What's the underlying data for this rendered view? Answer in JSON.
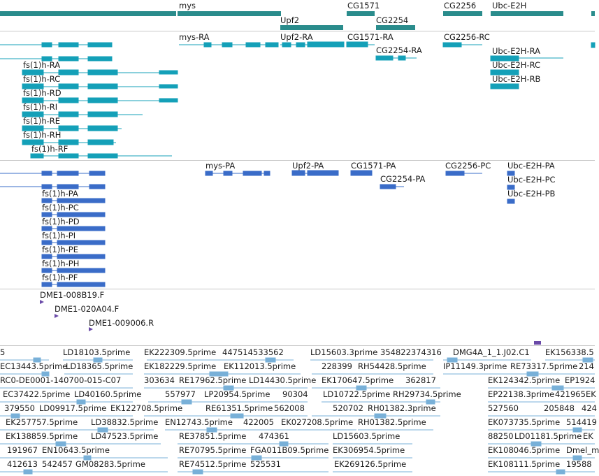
{
  "colors": {
    "gene": "#2a8c8c",
    "transcript": "#14a0b8",
    "protein": "#3a6cc8",
    "clone": "#6a4aa8",
    "est": "#78b0d8",
    "divider": "#c8c8c8"
  },
  "tracks": {
    "genes": {
      "labels": [
        "mys",
        "Upf2",
        "CG1571",
        "CG2254",
        "CG2256",
        "Ubc-E2H"
      ]
    },
    "transcripts": {
      "labels": [
        "mys-RA",
        "Upf2-RA",
        "CG1571-RA",
        "CG2254-RA",
        "CG2256-RC",
        "Ubc-E2H-RA",
        "Ubc-E2H-RC",
        "Ubc-E2H-RB",
        "fs(1)h-RA",
        "fs(1)h-RC",
        "fs(1)h-RD",
        "fs(1)h-RI",
        "fs(1)h-RE",
        "fs(1)h-RH",
        "fs(1)h-RF"
      ]
    },
    "proteins": {
      "labels": [
        "mys-PA",
        "Upf2-PA",
        "CG1571-PA",
        "CG2254-PA",
        "CG2256-PC",
        "Ubc-E2H-PA",
        "Ubc-E2H-PC",
        "Ubc-E2H-PB",
        "fs(1)h-PA",
        "fs(1)h-PC",
        "fs(1)h-PD",
        "fs(1)h-PI",
        "fs(1)h-PE",
        "fs(1)h-PH",
        "fs(1)h-PF"
      ]
    },
    "clones": {
      "labels": [
        "DME1-008B19.F",
        "DME1-020A04.F",
        "DME1-009006.R"
      ]
    },
    "ests": {
      "rows": [
        [
          "5",
          "LD18103.5prime",
          "EK222309.5prime",
          "447514533562",
          "LD15603.3prime",
          "354822374316",
          "DMG4A_1_1.J02.C1",
          "EK156338.5"
        ],
        [
          "EC13443.5prime",
          "LD18365.5prime",
          "EK182229.5prime",
          "EK112013.5prime",
          "228399",
          "RH54428.5prime",
          "IP11149.3prime",
          "RE73317.5prime",
          "214"
        ],
        [
          "RC0-DE0001-140700-015-C07",
          "303634",
          "RE17962.5prime",
          "LD14430.5prime",
          "EK170647.5prime",
          "362817",
          "EK124342.5prime",
          "EP1924"
        ],
        [
          "EC37422.5prime",
          "LD40160.5prime",
          "557977",
          "LP20954.5prime",
          "90304",
          "LD10722.5prime",
          "RH29734.5prime",
          "EP22138.3prime",
          "421965",
          "EK"
        ],
        [
          "379550",
          "LD09917.5prime",
          "EK122708.5prime",
          "RE61351.5prime",
          "562008",
          "520702",
          "RH01382.3prime",
          "527560",
          "205848",
          "424"
        ],
        [
          "EK257757.5prime",
          "LD38832.5prime",
          "EN12743.5prime",
          "422005",
          "EK027208.5prime",
          "RH01382.5prime",
          "EK073735.5prime",
          "514419"
        ],
        [
          "EK138859.5prime",
          "LD47523.5prime",
          "RE37851.5prime",
          "474361",
          "LD15603.5prime",
          "88250",
          "LD01181.5prime",
          "EK"
        ],
        [
          "191967",
          "EN10643.5prime",
          "RE70795.5prime",
          "FGA011B09.5prime",
          "EK306954.5prime",
          "EK108046.5prime",
          "Dmel_m"
        ],
        [
          "412613",
          "542457",
          "GM08283.5prime",
          "RE74512.5prime",
          "525531",
          "EK269126.5prime",
          "EK108111.5prime",
          "19588"
        ]
      ]
    }
  }
}
